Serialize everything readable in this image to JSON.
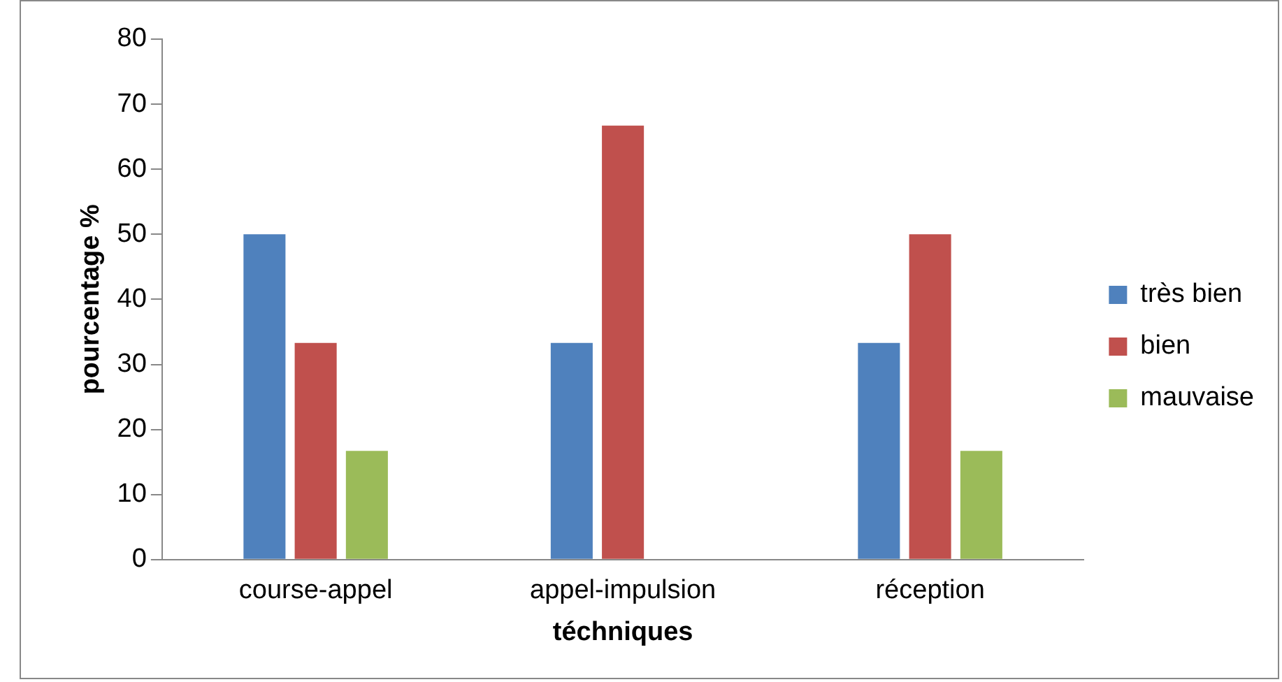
{
  "chart_data": {
    "type": "bar",
    "xlabel": "téchniques",
    "ylabel": "pourcentage %",
    "categories": [
      "course-appel",
      "appel-impulsion",
      "réception"
    ],
    "series": [
      {
        "name": "très bien",
        "color": "#4f81bd",
        "values": [
          50,
          33.3,
          33.3
        ]
      },
      {
        "name": "bien",
        "color": "#c0504d",
        "values": [
          33.3,
          66.7,
          50
        ]
      },
      {
        "name": "mauvaise",
        "color": "#9bbb59",
        "values": [
          16.7,
          0,
          16.7
        ]
      }
    ],
    "ylim": [
      0,
      80
    ],
    "yticks": [
      0,
      10,
      20,
      30,
      40,
      50,
      60,
      70,
      80
    ],
    "grid": false,
    "legend": "right"
  }
}
